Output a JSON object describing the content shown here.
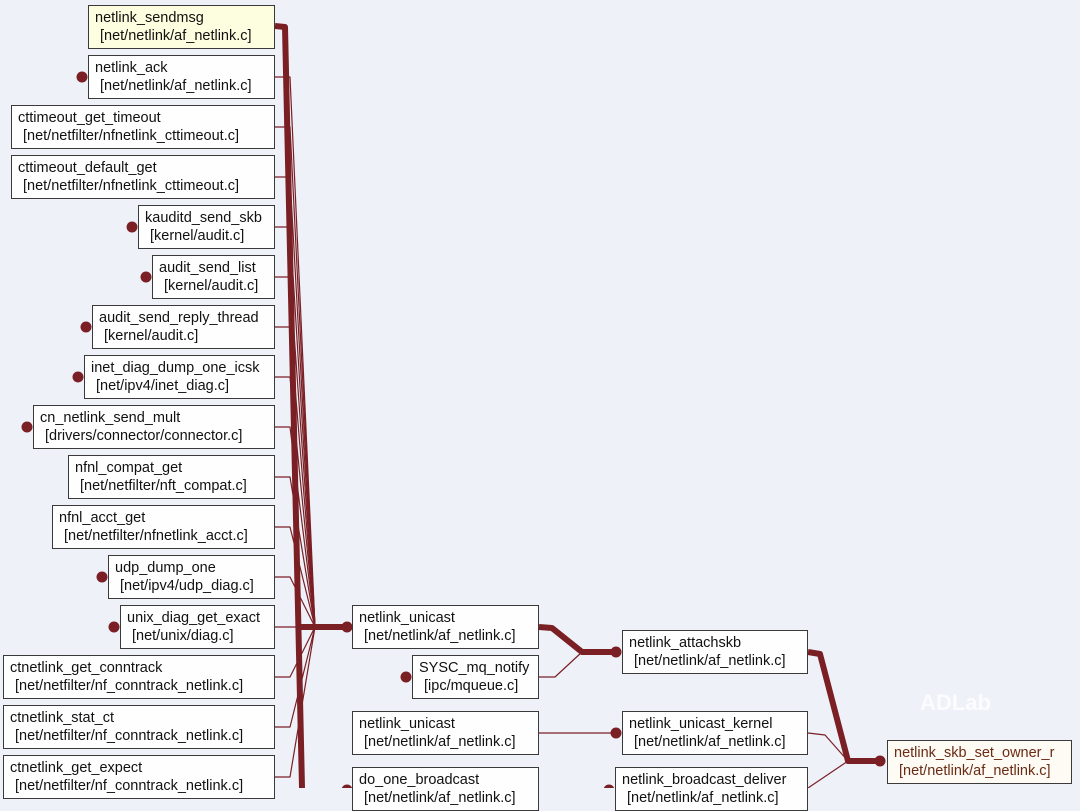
{
  "colors": {
    "edge": "#7a1f24",
    "background": "#eff1f9",
    "highlight": "#fdfddf"
  },
  "watermark": "ADLab",
  "nodes": [
    {
      "id": "n1",
      "name": "netlink_sendmsg",
      "file": "[net/netlink/af_netlink.c]",
      "highlight": true
    },
    {
      "id": "n2",
      "name": "netlink_ack",
      "file": "[net/netlink/af_netlink.c]"
    },
    {
      "id": "n3",
      "name": "cttimeout_get_timeout",
      "file": "[net/netfilter/nfnetlink_cttimeout.c]"
    },
    {
      "id": "n4",
      "name": "cttimeout_default_get",
      "file": "[net/netfilter/nfnetlink_cttimeout.c]"
    },
    {
      "id": "n5",
      "name": "kauditd_send_skb",
      "file": "[kernel/audit.c]"
    },
    {
      "id": "n6",
      "name": "audit_send_list",
      "file": "[kernel/audit.c]"
    },
    {
      "id": "n7",
      "name": "audit_send_reply_thread",
      "file": "[kernel/audit.c]"
    },
    {
      "id": "n8",
      "name": "inet_diag_dump_one_icsk",
      "file": "[net/ipv4/inet_diag.c]"
    },
    {
      "id": "n9",
      "name": "cn_netlink_send_mult",
      "file": "[drivers/connector/connector.c]"
    },
    {
      "id": "n10",
      "name": "nfnl_compat_get",
      "file": "[net/netfilter/nft_compat.c]"
    },
    {
      "id": "n11",
      "name": "nfnl_acct_get",
      "file": "[net/netfilter/nfnetlink_acct.c]"
    },
    {
      "id": "n12",
      "name": "udp_dump_one",
      "file": "[net/ipv4/udp_diag.c]"
    },
    {
      "id": "n13",
      "name": "unix_diag_get_exact",
      "file": "[net/unix/diag.c]"
    },
    {
      "id": "n14",
      "name": "ctnetlink_get_conntrack",
      "file": "[net/netfilter/nf_conntrack_netlink.c]"
    },
    {
      "id": "n15",
      "name": "ctnetlink_stat_ct",
      "file": "[net/netfilter/nf_conntrack_netlink.c]"
    },
    {
      "id": "n16",
      "name": "ctnetlink_get_expect",
      "file": "[net/netfilter/nf_conntrack_netlink.c]"
    },
    {
      "id": "m1",
      "name": "netlink_unicast",
      "file": "[net/netlink/af_netlink.c]"
    },
    {
      "id": "m2",
      "name": "SYSC_mq_notify",
      "file": "[ipc/mqueue.c]"
    },
    {
      "id": "m3",
      "name": "netlink_unicast",
      "file": "[net/netlink/af_netlink.c]"
    },
    {
      "id": "m4",
      "name": "do_one_broadcast",
      "file": "[net/netlink/af_netlink.c]"
    },
    {
      "id": "r1",
      "name": "netlink_attachskb",
      "file": "[net/netlink/af_netlink.c]"
    },
    {
      "id": "r2",
      "name": "netlink_unicast_kernel",
      "file": "[net/netlink/af_netlink.c]"
    },
    {
      "id": "r3",
      "name": "netlink_broadcast_deliver",
      "file": "[net/netlink/af_netlink.c]"
    },
    {
      "id": "t1",
      "name": "netlink_skb_set_owner_r",
      "file": "[net/netlink/af_netlink.c]"
    }
  ]
}
